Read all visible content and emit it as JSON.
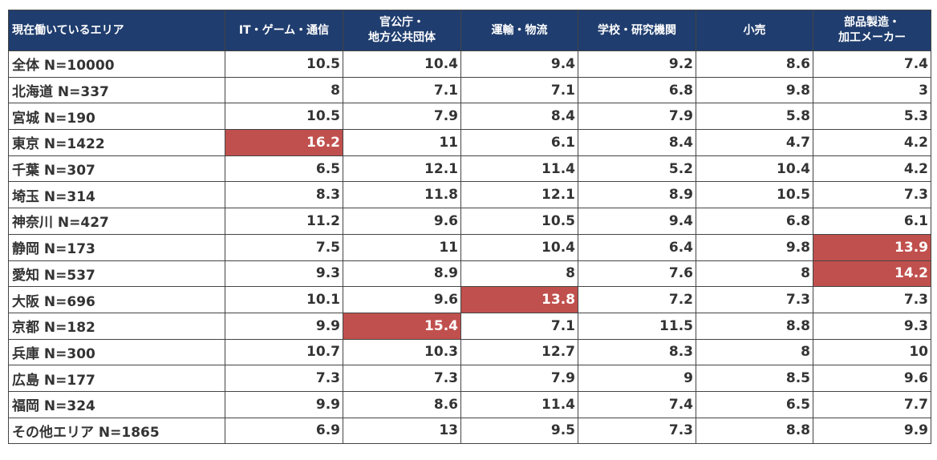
{
  "chart_data": {
    "type": "table",
    "columns": [
      "現在働いているエリア",
      "IT・ゲーム・通信",
      "官公庁・地方公共団体",
      "運輸・物流",
      "学校・研究機関",
      "小売",
      "部品製造・加工メーカー"
    ],
    "column_lines": [
      [
        "現在働いているエリア"
      ],
      [
        "IT・ゲーム・通信"
      ],
      [
        "官公庁・",
        "地方公共団体"
      ],
      [
        "運輸・物流"
      ],
      [
        "学校・研究機関"
      ],
      [
        "小売"
      ],
      [
        "部品製造・",
        "加工メーカー"
      ]
    ],
    "rows": [
      {
        "label": "全体 N=10000",
        "values": [
          10.5,
          10.4,
          9.4,
          9.2,
          8.6,
          7.4
        ]
      },
      {
        "label": "北海道 N=337",
        "values": [
          8,
          7.1,
          7.1,
          6.8,
          9.8,
          3
        ]
      },
      {
        "label": "宮城 N=190",
        "values": [
          10.5,
          7.9,
          8.4,
          7.9,
          5.8,
          5.3
        ]
      },
      {
        "label": "東京 N=1422",
        "values": [
          16.2,
          11,
          6.1,
          8.4,
          4.7,
          4.2
        ]
      },
      {
        "label": "千葉 N=307",
        "values": [
          6.5,
          12.1,
          11.4,
          5.2,
          10.4,
          4.2
        ]
      },
      {
        "label": "埼玉 N=314",
        "values": [
          8.3,
          11.8,
          12.1,
          8.9,
          10.5,
          7.3
        ]
      },
      {
        "label": "神奈川 N=427",
        "values": [
          11.2,
          9.6,
          10.5,
          9.4,
          6.8,
          6.1
        ]
      },
      {
        "label": "静岡 N=173",
        "values": [
          7.5,
          11,
          10.4,
          6.4,
          9.8,
          13.9
        ]
      },
      {
        "label": "愛知 N=537",
        "values": [
          9.3,
          8.9,
          8,
          7.6,
          8,
          14.2
        ]
      },
      {
        "label": "大阪 N=696",
        "values": [
          10.1,
          9.6,
          13.8,
          7.2,
          7.3,
          7.3
        ]
      },
      {
        "label": "京都 N=182",
        "values": [
          9.9,
          15.4,
          7.1,
          11.5,
          8.8,
          9.3
        ]
      },
      {
        "label": "兵庫 N=300",
        "values": [
          10.7,
          10.3,
          12.7,
          8.3,
          8,
          10
        ]
      },
      {
        "label": "広島 N=177",
        "values": [
          7.3,
          7.3,
          7.9,
          9,
          8.5,
          9.6
        ]
      },
      {
        "label": "福岡 N=324",
        "values": [
          9.9,
          8.6,
          11.4,
          7.4,
          6.5,
          7.7
        ]
      },
      {
        "label": "その他エリア N=1865",
        "values": [
          6.9,
          13,
          9.5,
          7.3,
          8.8,
          9.9
        ]
      }
    ],
    "highlighted": [
      [
        3,
        0
      ],
      [
        7,
        5
      ],
      [
        8,
        5
      ],
      [
        9,
        2
      ],
      [
        10,
        1
      ]
    ],
    "colors": {
      "header_bg": "#1f3d6e",
      "highlight_bg": "#c0504d"
    }
  }
}
